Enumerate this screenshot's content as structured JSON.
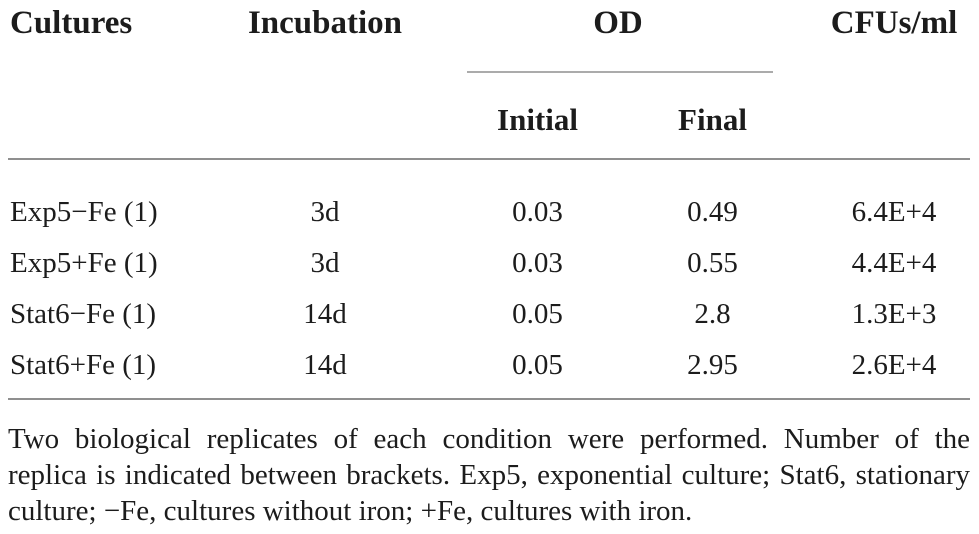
{
  "table": {
    "headers": {
      "cultures": "Cultures",
      "incubation": "Incubation",
      "od": "OD",
      "od_initial": "Initial",
      "od_final": "Final",
      "cfus": "CFUs/ml"
    },
    "rows": [
      {
        "culture": "Exp5−Fe (1)",
        "incubation": "3d",
        "od_initial": "0.03",
        "od_final": "0.49",
        "cfus": "6.4E+4"
      },
      {
        "culture": "Exp5+Fe (1)",
        "incubation": "3d",
        "od_initial": "0.03",
        "od_final": "0.55",
        "cfus": "4.4E+4"
      },
      {
        "culture": "Stat6−Fe (1)",
        "incubation": "14d",
        "od_initial": "0.05",
        "od_final": "2.8",
        "cfus": "1.3E+3"
      },
      {
        "culture": "Stat6+Fe (1)",
        "incubation": "14d",
        "od_initial": "0.05",
        "od_final": "2.95",
        "cfus": "2.6E+4"
      }
    ]
  },
  "footnote": "Two biological replicates of each condition were performed. Number of the replica is indicated between brackets. Exp5, exponential culture; Stat6, stationary culture; −Fe, cultures without iron; +Fe, cultures with iron.",
  "colors": {
    "text": "#1c1c1c",
    "rule": "#8f8f8f",
    "od_rule": "#ababab",
    "background": "#ffffff"
  }
}
